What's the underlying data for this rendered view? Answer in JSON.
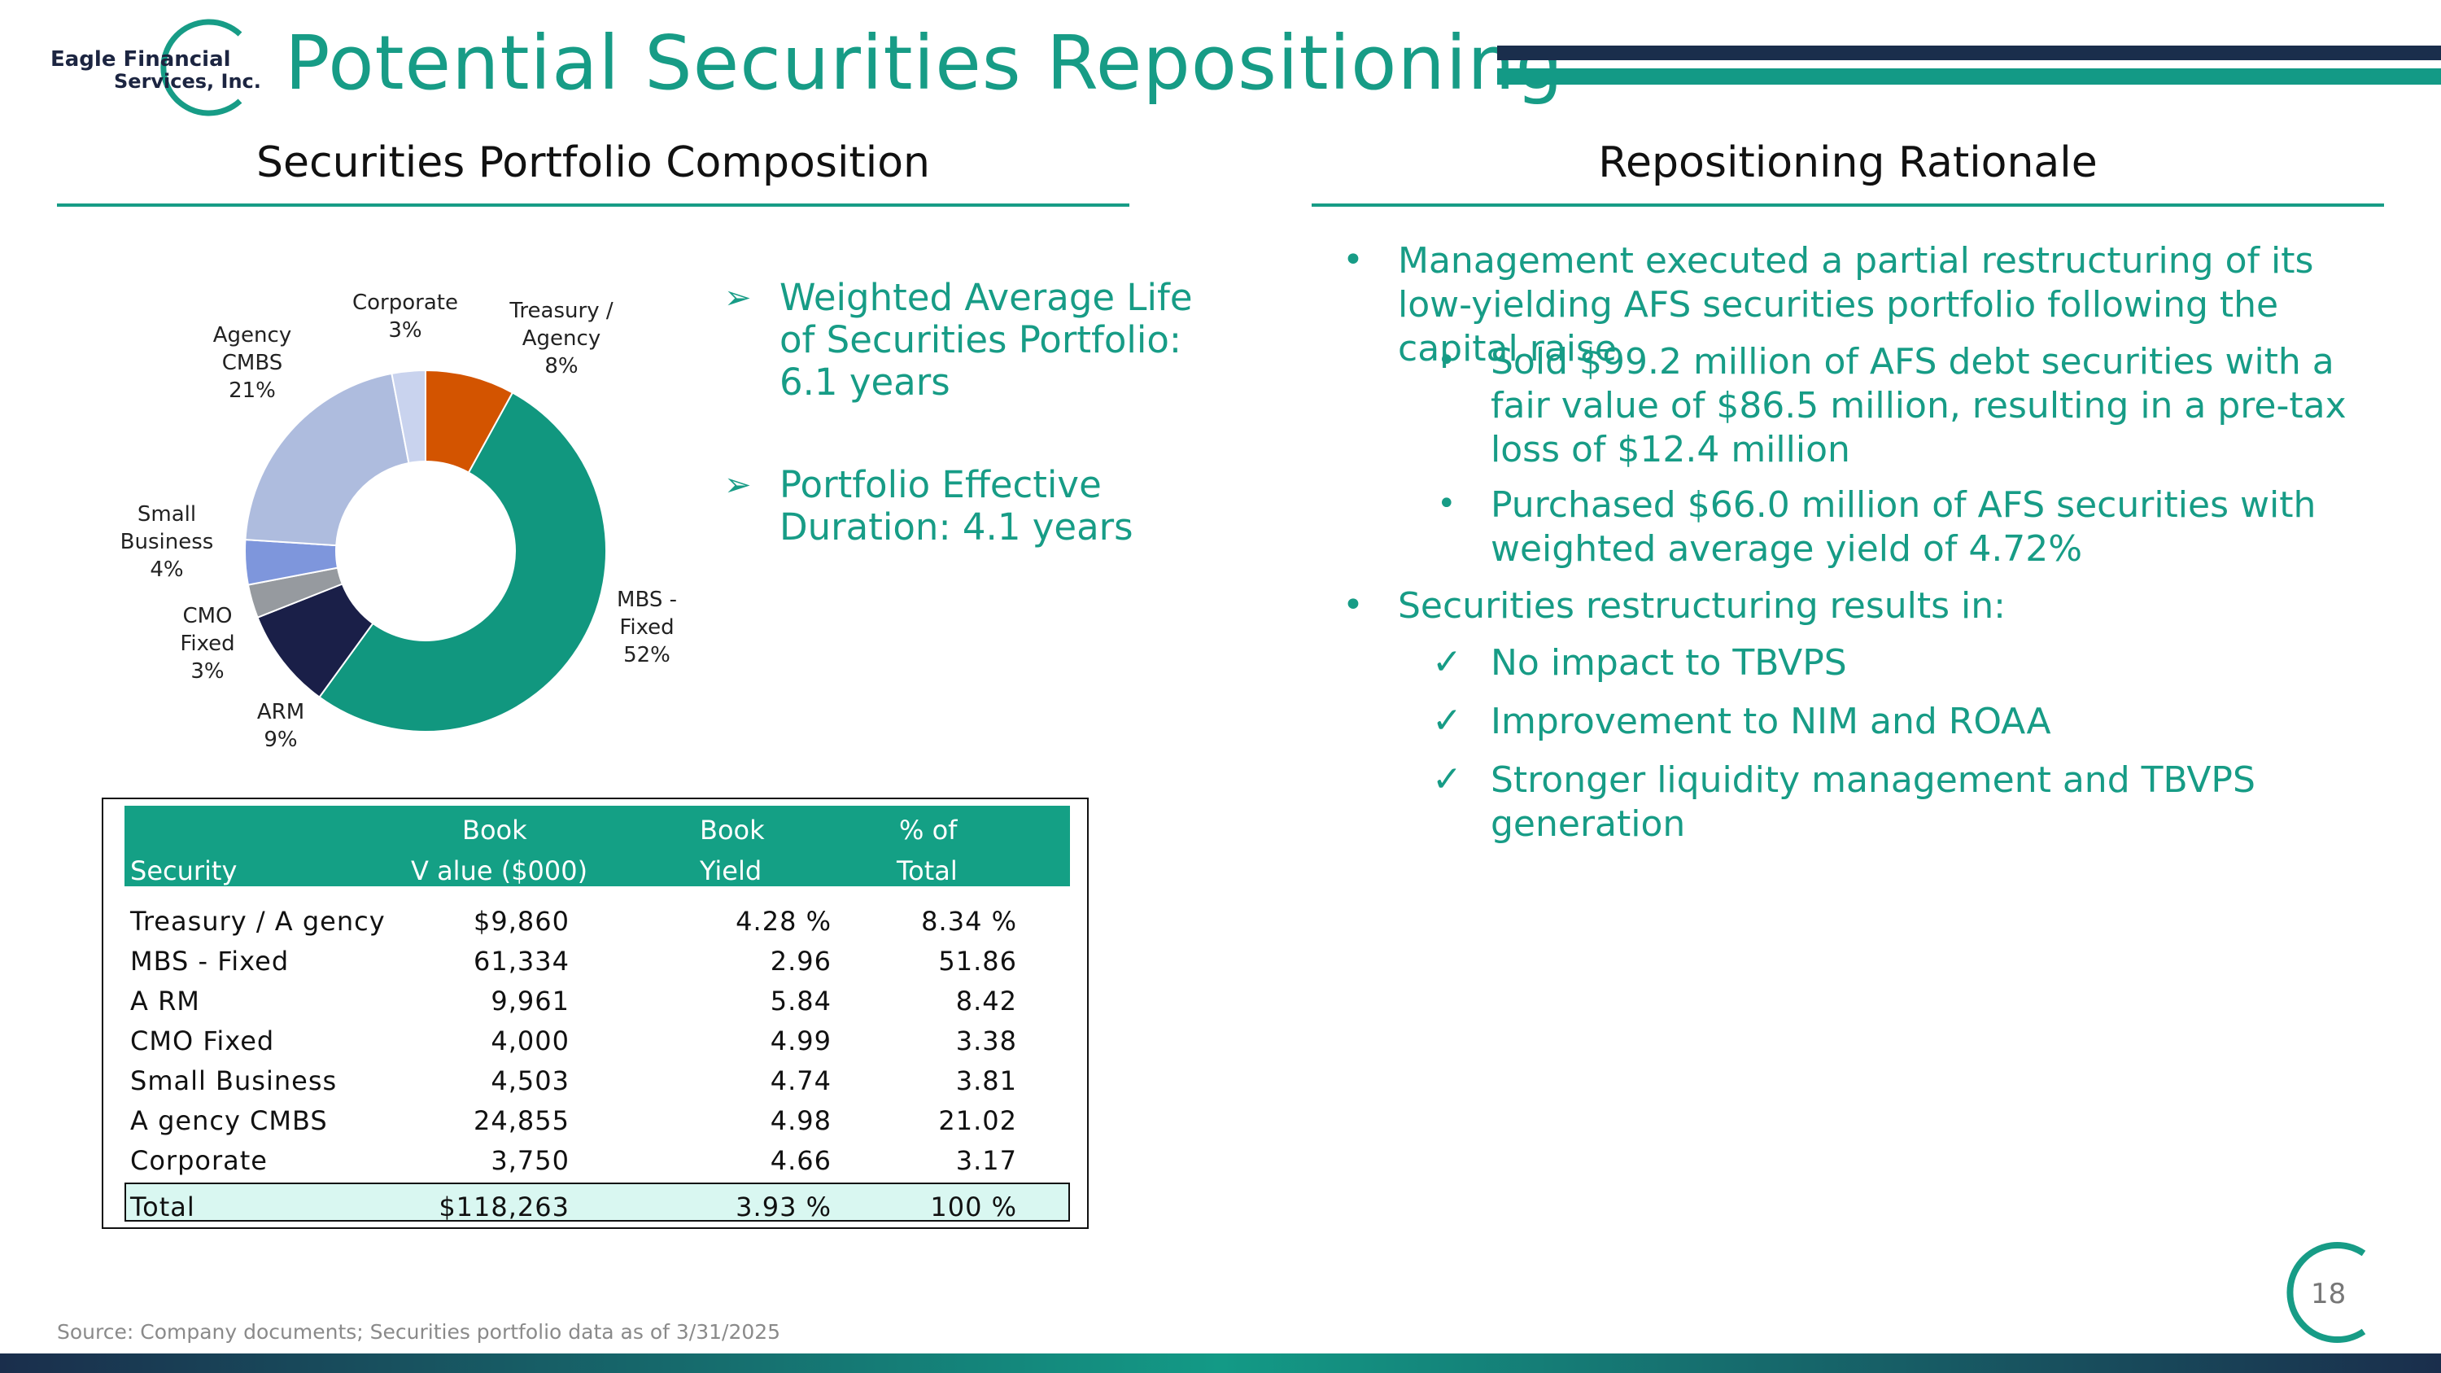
{
  "logo": {
    "line1": "Eagle Financial",
    "line2": "Services, Inc.",
    "colors": {
      "ring": "#179c86",
      "text": "#1c2541"
    }
  },
  "page_title": "Potential Securities Repositioning",
  "left_section_title": "Securities Portfolio Composition",
  "right_section_title": "Repositioning Rationale",
  "colors": {
    "accent": "#179c86",
    "navy": "#1a2e4c",
    "table_header": "#14a085",
    "total_row": "#d9f7f1"
  },
  "chart_data": {
    "type": "pie",
    "donut": true,
    "slices": [
      {
        "label": "Treasury / Agency",
        "label_lines": [
          "Treasury /",
          "Agency"
        ],
        "value": 8,
        "pct_label": "8%",
        "color": "#d35400"
      },
      {
        "label": "MBS - Fixed",
        "label_lines": [
          "MBS -",
          "Fixed"
        ],
        "value": 52,
        "pct_label": "52%",
        "color": "#11977f"
      },
      {
        "label": "ARM",
        "label_lines": [
          "ARM"
        ],
        "value": 9,
        "pct_label": "9%",
        "color": "#1a1f48"
      },
      {
        "label": "CMO Fixed",
        "label_lines": [
          "CMO",
          "Fixed"
        ],
        "value": 3,
        "pct_label": "3%",
        "color": "#969a9f"
      },
      {
        "label": "Small Business",
        "label_lines": [
          "Small",
          "Business"
        ],
        "value": 4,
        "pct_label": "4%",
        "color": "#7e96dc"
      },
      {
        "label": "Agency CMBS",
        "label_lines": [
          "Agency",
          "CMBS"
        ],
        "value": 21,
        "pct_label": "21%",
        "color": "#aebcde"
      },
      {
        "label": "Corporate",
        "label_lines": [
          "Corporate"
        ],
        "value": 3,
        "pct_label": "3%",
        "color": "#c9d3ee"
      }
    ]
  },
  "stats": [
    {
      "arrow": "➢",
      "text": "Weighted Average Life of Securities Portfolio: 6.1 years"
    },
    {
      "arrow": "➢",
      "text": "Portfolio Effective Duration: 4.1 years"
    }
  ],
  "table": {
    "header_top": [
      "",
      "Book",
      "Book",
      "% of"
    ],
    "header_bottom": [
      "Security",
      "V alue ($000)",
      "Yield",
      "Total"
    ],
    "rows": [
      [
        "Treasury / A gency",
        "$9,860",
        "4.28 %",
        "8.34 %"
      ],
      [
        "MBS - Fixed",
        "61,334",
        "2.96",
        "51.86"
      ],
      [
        "A RM",
        "9,961",
        "5.84",
        "8.42"
      ],
      [
        "CMO Fixed",
        "4,000",
        "4.99",
        "3.38"
      ],
      [
        "Small Business",
        "4,503",
        "4.74",
        "3.81"
      ],
      [
        "A gency CMBS",
        "24,855",
        "4.98",
        "21.02"
      ],
      [
        "Corporate",
        "3,750",
        "4.66",
        "3.17"
      ]
    ],
    "total": [
      "Total",
      "$118,263",
      "3.93 %",
      "100 %"
    ]
  },
  "rationale": {
    "b1": "Management executed a partial restructuring of its low-yielding AFS securities portfolio following the capital raise",
    "b1a": "Sold $99.2 million of AFS debt securities with a fair value of $86.5 million, resulting in a pre-tax loss of $12.4 million",
    "b1b": "Purchased $66.0 million of AFS securities with weighted average yield of 4.72%",
    "b2": "Securities restructuring results in:",
    "checks": [
      "No impact to TBVPS",
      "Improvement to NIM and ROAA",
      "Stronger liquidity management and TBVPS generation"
    ],
    "bullet": "•",
    "check_mark": "✓"
  },
  "footer": {
    "source": "Source: Company documents; Securities portfolio data as of 3/31/2025",
    "page_number": "18"
  }
}
